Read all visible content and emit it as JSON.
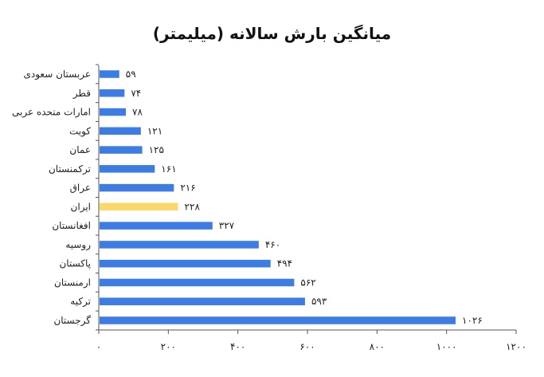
{
  "chart_data": {
    "type": "bar",
    "orientation": "horizontal",
    "title": "میانگین بارش  سالانه (میلیمتر)",
    "categories": [
      "عربستان سعودی",
      "قطر",
      "امارات متحده عربی",
      "کویت",
      "عمان",
      "ترکمنستان",
      "عراق",
      "ایران",
      "افغانستان",
      "روسیه",
      "پاکستان",
      "ارمنستان",
      "ترکیه",
      "گرجستان"
    ],
    "values": [
      59,
      74,
      78,
      121,
      125,
      161,
      216,
      228,
      327,
      460,
      494,
      562,
      593,
      1026
    ],
    "value_labels": [
      "۵۹",
      "۷۴",
      "۷۸",
      "۱۲۱",
      "۱۲۵",
      "۱۶۱",
      "۲۱۶",
      "۲۲۸",
      "۳۲۷",
      "۴۶۰",
      "۴۹۴",
      "۵۶۲",
      "۵۹۳",
      "۱۰۲۶"
    ],
    "highlight_index": 7,
    "xlim": [
      0,
      1200
    ],
    "xticks": [
      0,
      200,
      400,
      600,
      800,
      1000,
      1200
    ],
    "xtick_labels": [
      "۰",
      "۲۰۰",
      "۴۰۰",
      "۶۰۰",
      "۸۰۰",
      "۱۰۰۰",
      "۱۲۰۰"
    ],
    "xlabel": "",
    "ylabel": "",
    "grid": false,
    "legend": "none",
    "colors": {
      "bar": "#3d7de3",
      "highlight": "#fcd76b",
      "axis": "#555555"
    }
  }
}
